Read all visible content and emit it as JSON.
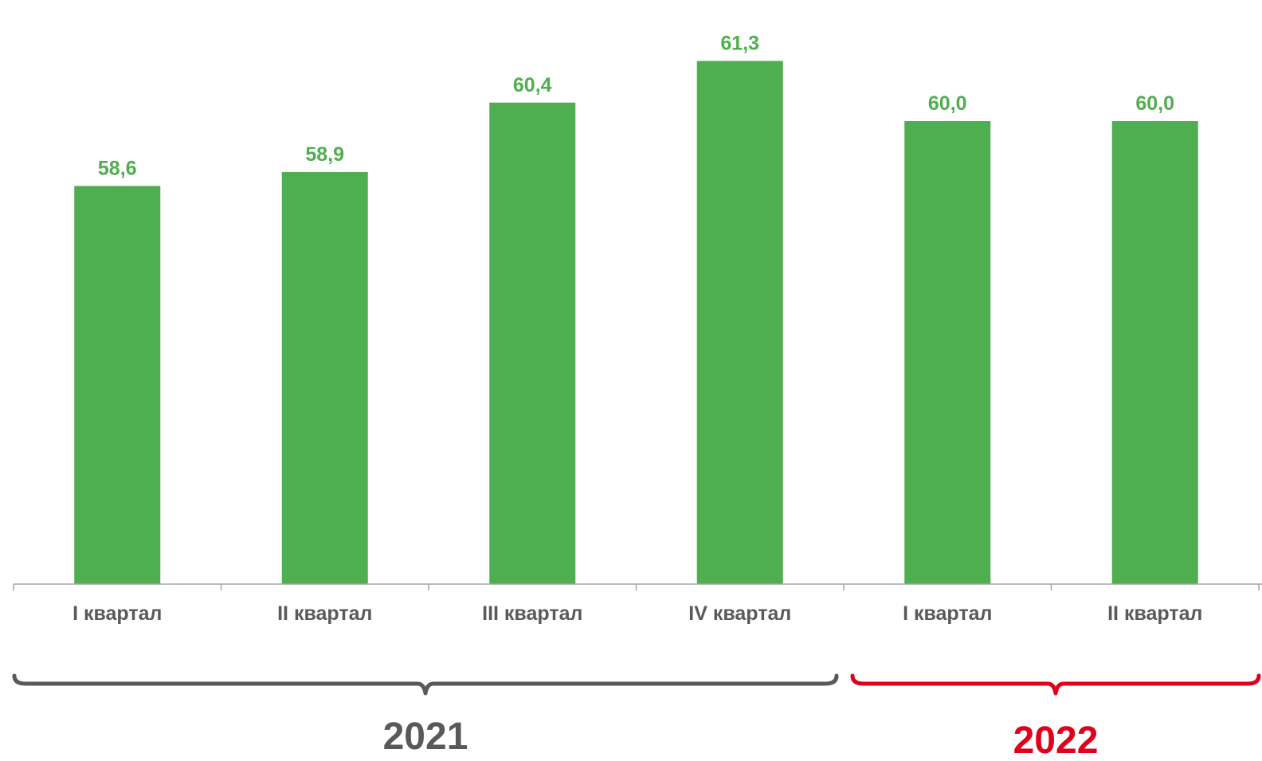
{
  "chart_data": {
    "type": "bar",
    "categories": [
      "I квартал",
      "II квартал",
      "III квартал",
      "IV квартал",
      "I квартал",
      "II квартал"
    ],
    "values": [
      58.6,
      58.9,
      60.4,
      61.3,
      60.0,
      60.0
    ],
    "value_labels": [
      "58,6",
      "58,9",
      "60,4",
      "61,3",
      "60,0",
      "60,0"
    ],
    "groups": [
      {
        "label": "2021",
        "categories": [
          "I квартал",
          "II квартал",
          "III квартал",
          "IV квартал"
        ],
        "color": "#595959"
      },
      {
        "label": "2022",
        "categories": [
          "I квартал",
          "II квартал"
        ],
        "color": "#e0001b"
      }
    ],
    "bar_color": "#4fae4f",
    "label_color": "#4fae4f",
    "category_color": "#595959",
    "ylim": [
      50,
      62.1
    ],
    "grid": false,
    "title": "",
    "xlabel": "",
    "ylabel": ""
  }
}
